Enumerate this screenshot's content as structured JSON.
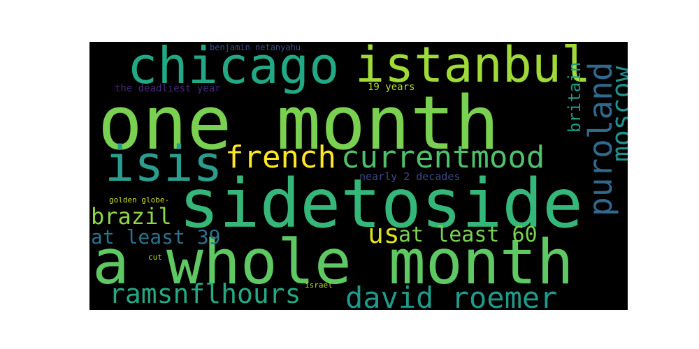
{
  "colors": {
    "background": "#000000",
    "page": "#ffffff"
  },
  "words": {
    "one_month": {
      "text": "one month",
      "color": "#7ad151"
    },
    "sidetoside": {
      "text": "sidetoside",
      "color": "#35b779"
    },
    "a_whole_month": {
      "text": "a whole month",
      "color": "#5ec962"
    },
    "chicago": {
      "text": "chicago",
      "color": "#22a884"
    },
    "istanbul": {
      "text": "istanbul",
      "color": "#a0da39"
    },
    "isis": {
      "text": "isis",
      "color": "#2a9d8f"
    },
    "french": {
      "text": "french",
      "color": "#fde725"
    },
    "currentmood": {
      "text": "currentmood",
      "color": "#4fc16b"
    },
    "puroland": {
      "text": "puroland",
      "color": "#31688e"
    },
    "moscow": {
      "text": "moscow",
      "color": "#21918c"
    },
    "britain": {
      "text": "britain",
      "color": "#1f9e89"
    },
    "brazil": {
      "text": "brazil",
      "color": "#8fd744"
    },
    "us": {
      "text": "us",
      "color": "#dde318"
    },
    "at_least_60": {
      "text": "at least 60",
      "color": "#7ad151"
    },
    "at_least_39": {
      "text": "at least 39",
      "color": "#2c728e"
    },
    "ramsnflhours": {
      "text": "ramsnflhours",
      "color": "#23a983"
    },
    "david_roemer": {
      "text": "david roemer",
      "color": "#1f9a8a"
    },
    "benjamin_netanyahu": {
      "text": "benjamin netanyahu",
      "color": "#3b528b"
    },
    "the_deadliest_year": {
      "text": "the deadliest year",
      "color": "#482878"
    },
    "nineteen_years": {
      "text": "19 years",
      "color": "#b5de2b"
    },
    "nearly_2_decades": {
      "text": "nearly 2 decades",
      "color": "#3e4a89"
    },
    "golden_globe": {
      "text": "golden globe-",
      "color": "#d2e21b"
    },
    "cut": {
      "text": "cut",
      "color": "#b8de29"
    },
    "israel": {
      "text": "israel",
      "color": "#c2df23"
    }
  }
}
